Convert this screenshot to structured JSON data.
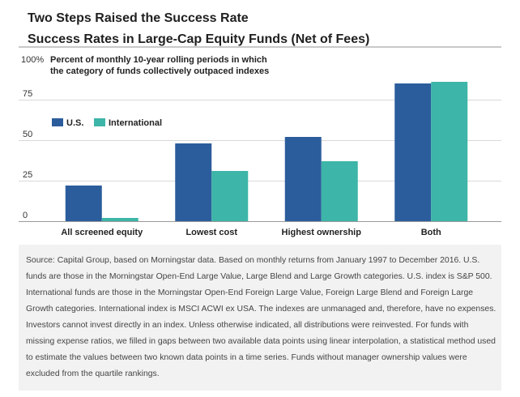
{
  "header": {
    "title": "Two Steps Raised the Success Rate",
    "subtitle": "Success Rates in Large-Cap Equity Funds (Net of Fees)"
  },
  "chart_data": {
    "type": "bar",
    "categories": [
      "All screened equity",
      "Lowest cost",
      "Highest ownership",
      "Both"
    ],
    "series": [
      {
        "name": "U.S.",
        "values": [
          22,
          48,
          52,
          85
        ],
        "color": "#2b5d9c"
      },
      {
        "name": "International",
        "values": [
          2,
          31,
          37,
          86
        ],
        "color": "#3db5a8"
      }
    ],
    "title": "Percent of monthly 10-year rolling periods in which",
    "title_line2": "the category of funds collectively outpaced indexes",
    "ylim": [
      0,
      100
    ],
    "yticks": [
      0,
      25,
      50,
      75
    ],
    "ytick_labels": [
      "0",
      "25",
      "50",
      "75"
    ],
    "ytop_label": "100%",
    "legend_position": "top-left"
  },
  "source": {
    "text": "Source: Capital Group, based on Morningstar data. Based on monthly returns from January 1997 to December 2016. U.S. funds are those in the Morningstar Open-End Large Value, Large Blend and Large Growth categories. U.S. index is S&P 500. International funds are those in the Morningstar Open-End Foreign Large Value, Foreign Large Blend and Foreign Large Growth categories. International index is MSCI ACWI ex USA. The indexes are unmanaged and, therefore, have no expenses. Investors cannot invest directly in an index. Unless otherwise indicated, all distributions were reinvested. For funds with missing expense ratios, we filled in gaps between two available data points using linear interpolation, a statistical method used to estimate the values between two known data points in a time series. Funds without manager ownership values were excluded from the quartile rankings."
  }
}
